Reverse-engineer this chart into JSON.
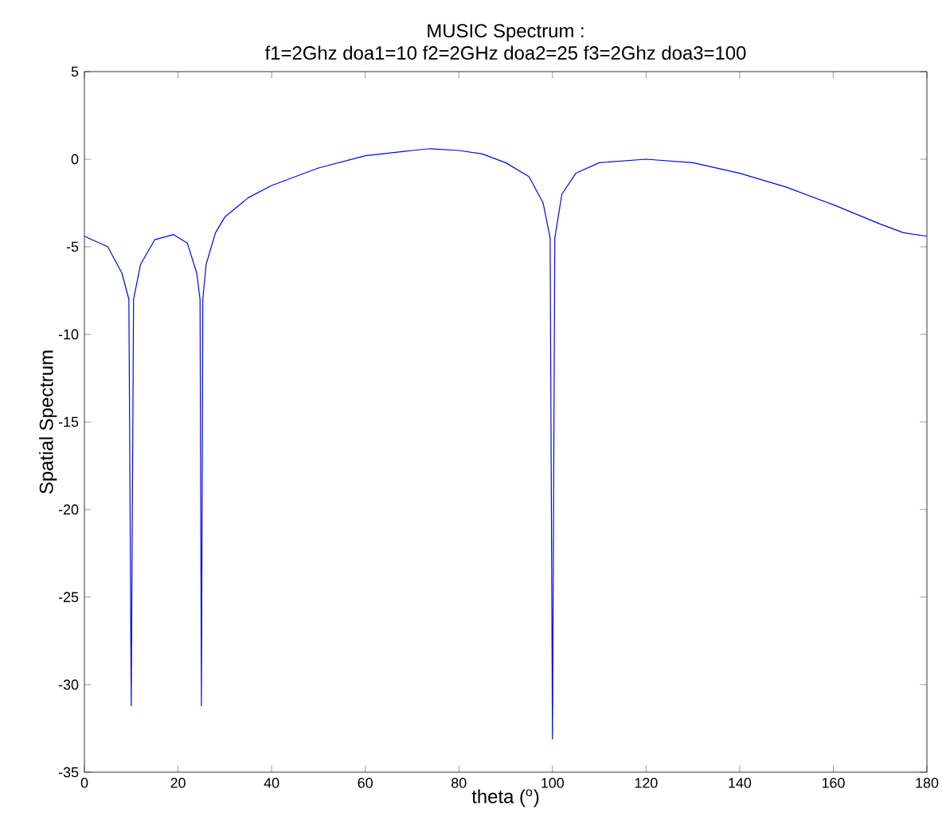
{
  "chart_data": {
    "type": "line",
    "title": "MUSIC Spectrum :",
    "subtitle": "f1=2Ghz doa1=10  f2=2GHz doa2=25  f3=2Ghz doa3=100",
    "xlabel": "theta ($^{o}$)",
    "ylabel": "Spatial Spectrum",
    "x": [
      0,
      5,
      8,
      9.5,
      10,
      10.5,
      12,
      15,
      19,
      22,
      24,
      24.7,
      25,
      25.3,
      26,
      28,
      30,
      35,
      40,
      50,
      60,
      70,
      74,
      80,
      85,
      90,
      95,
      98,
      99.5,
      100,
      100.5,
      102,
      105,
      110,
      120,
      130,
      140,
      150,
      160,
      170,
      175,
      180
    ],
    "series": [
      {
        "color": "#0000ff",
        "values": [
          -4.4,
          -5,
          -6.5,
          -8,
          -31.2,
          -8,
          -6,
          -4.6,
          -4.3,
          -4.8,
          -6.5,
          -8,
          -31.2,
          -8,
          -6,
          -4.2,
          -3.3,
          -2.2,
          -1.5,
          -0.5,
          0.2,
          0.5,
          0.6,
          0.5,
          0.3,
          -0.2,
          -1.0,
          -2.5,
          -4.5,
          -33.1,
          -4.5,
          -2,
          -0.8,
          -0.2,
          0.0,
          -0.2,
          -0.8,
          -1.6,
          -2.6,
          -3.7,
          -4.2,
          -4.4
        ]
      }
    ],
    "xlim": [
      0,
      180
    ],
    "ylim": [
      -35,
      5
    ],
    "xticks": [
      0,
      20,
      40,
      60,
      80,
      100,
      120,
      140,
      160,
      180
    ],
    "yticks": [
      -35,
      -30,
      -25,
      -20,
      -15,
      -10,
      -5,
      0,
      5
    ],
    "grid": false,
    "marker": "none",
    "line_style": "solid"
  }
}
